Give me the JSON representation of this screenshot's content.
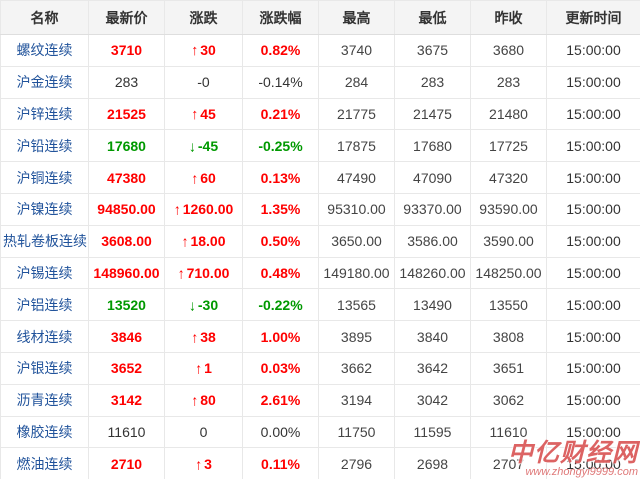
{
  "table": {
    "columns": [
      {
        "key": "name",
        "label": "名称"
      },
      {
        "key": "last",
        "label": "最新价"
      },
      {
        "key": "change",
        "label": "涨跌"
      },
      {
        "key": "pct",
        "label": "涨跌幅"
      },
      {
        "key": "high",
        "label": "最高"
      },
      {
        "key": "low",
        "label": "最低"
      },
      {
        "key": "prev",
        "label": "昨收"
      },
      {
        "key": "time",
        "label": "更新时间"
      }
    ],
    "rows": [
      {
        "name": "螺纹连续",
        "last": "3710",
        "arrow": "up",
        "change": "30",
        "pct": "0.82%",
        "high": "3740",
        "low": "3675",
        "prev": "3680",
        "time": "15:00:00",
        "trend": "up"
      },
      {
        "name": "沪金连续",
        "last": "283",
        "arrow": null,
        "change": "-0",
        "pct": "-0.14%",
        "high": "284",
        "low": "283",
        "prev": "283",
        "time": "15:00:00",
        "trend": "flat"
      },
      {
        "name": "沪锌连续",
        "last": "21525",
        "arrow": "up",
        "change": "45",
        "pct": "0.21%",
        "high": "21775",
        "low": "21475",
        "prev": "21480",
        "time": "15:00:00",
        "trend": "up"
      },
      {
        "name": "沪铅连续",
        "last": "17680",
        "arrow": "down",
        "change": "-45",
        "pct": "-0.25%",
        "high": "17875",
        "low": "17680",
        "prev": "17725",
        "time": "15:00:00",
        "trend": "down"
      },
      {
        "name": "沪铜连续",
        "last": "47380",
        "arrow": "up",
        "change": "60",
        "pct": "0.13%",
        "high": "47490",
        "low": "47090",
        "prev": "47320",
        "time": "15:00:00",
        "trend": "up"
      },
      {
        "name": "沪镍连续",
        "last": "94850.00",
        "arrow": "up",
        "change": "1260.00",
        "pct": "1.35%",
        "high": "95310.00",
        "low": "93370.00",
        "prev": "93590.00",
        "time": "15:00:00",
        "trend": "up"
      },
      {
        "name": "热轧卷板连续",
        "last": "3608.00",
        "arrow": "up",
        "change": "18.00",
        "pct": "0.50%",
        "high": "3650.00",
        "low": "3586.00",
        "prev": "3590.00",
        "time": "15:00:00",
        "trend": "up"
      },
      {
        "name": "沪锡连续",
        "last": "148960.00",
        "arrow": "up",
        "change": "710.00",
        "pct": "0.48%",
        "high": "149180.00",
        "low": "148260.00",
        "prev": "148250.00",
        "time": "15:00:00",
        "trend": "up"
      },
      {
        "name": "沪铝连续",
        "last": "13520",
        "arrow": "down",
        "change": "-30",
        "pct": "-0.22%",
        "high": "13565",
        "low": "13490",
        "prev": "13550",
        "time": "15:00:00",
        "trend": "down"
      },
      {
        "name": "线材连续",
        "last": "3846",
        "arrow": "up",
        "change": "38",
        "pct": "1.00%",
        "high": "3895",
        "low": "3840",
        "prev": "3808",
        "time": "15:00:00",
        "trend": "up"
      },
      {
        "name": "沪银连续",
        "last": "3652",
        "arrow": "up",
        "change": "1",
        "pct": "0.03%",
        "high": "3662",
        "low": "3642",
        "prev": "3651",
        "time": "15:00:00",
        "trend": "up"
      },
      {
        "name": "沥青连续",
        "last": "3142",
        "arrow": "up",
        "change": "80",
        "pct": "2.61%",
        "high": "3194",
        "low": "3042",
        "prev": "3062",
        "time": "15:00:00",
        "trend": "up"
      },
      {
        "name": "橡胶连续",
        "last": "11610",
        "arrow": null,
        "change": "0",
        "pct": "0.00%",
        "high": "11750",
        "low": "11595",
        "prev": "11610",
        "time": "15:00:00",
        "trend": "flat"
      },
      {
        "name": "燃油连续",
        "last": "2710",
        "arrow": "up",
        "change": "3",
        "pct": "0.11%",
        "high": "2796",
        "low": "2698",
        "prev": "2707",
        "time": "15:00:00",
        "trend": "up"
      }
    ]
  },
  "icons": {
    "up_arrow": "↑",
    "down_arrow": "↓"
  },
  "watermark": {
    "logo": "中亿财经网",
    "url": "www.zhongyi9999.com"
  },
  "colors": {
    "up": "#ff0000",
    "down": "#009900",
    "flat": "#333333",
    "name_link": "#21539b",
    "header_bg": "#f4f4f4",
    "border": "#e8e8e8"
  }
}
